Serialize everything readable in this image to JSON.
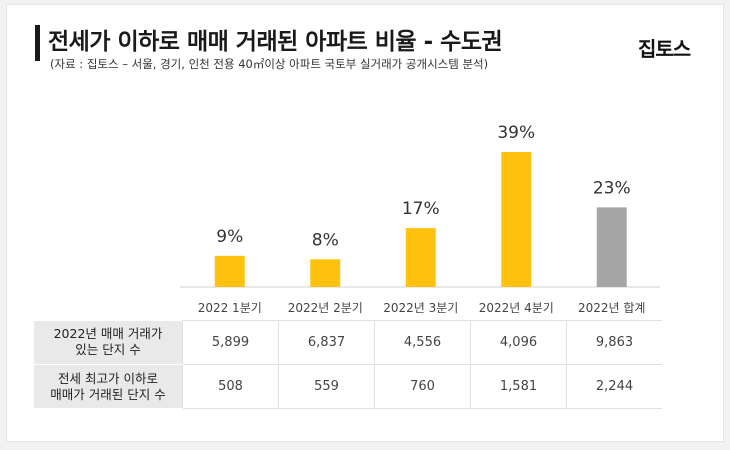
{
  "header": {
    "title": "전세가 이하로 매매 거래된 아파트 비율 - 수도권",
    "subtitle": "(자료 : 집토스 – 서울, 경기, 인천 전용 40㎡이상 아파트 국토부 실거래가 공개시스템 분석)",
    "logo": "집토스"
  },
  "chart_data": {
    "type": "bar",
    "categories": [
      "2022 1분기",
      "2022년 2분기",
      "2022년 3분기",
      "2022년 4분기",
      "2022년 합계"
    ],
    "values": [
      9,
      8,
      17,
      39,
      23
    ],
    "value_labels": [
      "9%",
      "8%",
      "17%",
      "39%",
      "23%"
    ],
    "colors": [
      "#ffc20e",
      "#ffc20e",
      "#ffc20e",
      "#ffc20e",
      "#a6a6a6"
    ],
    "ylim": [
      0,
      39
    ],
    "grid": false
  },
  "table": {
    "rows": [
      {
        "header_line1": "2022년 매매 거래가",
        "header_line2": "있는 단지 수",
        "values": [
          "5,899",
          "6,837",
          "4,556",
          "4,096",
          "9,863"
        ]
      },
      {
        "header_line1": "전세 최고가 이하로",
        "header_line2": "매매가 거래된 단지 수",
        "values": [
          "508",
          "559",
          "760",
          "1,581",
          "2,244"
        ]
      }
    ]
  }
}
